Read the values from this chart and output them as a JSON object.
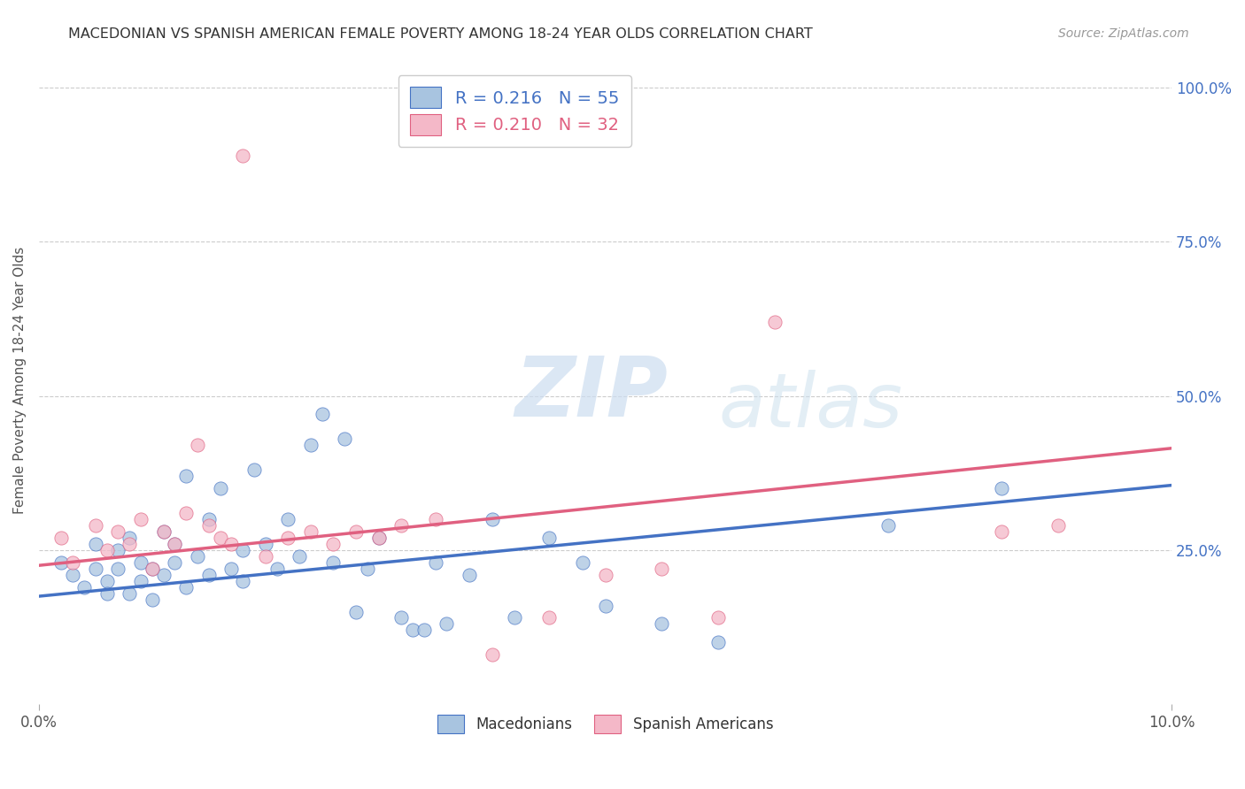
{
  "title": "MACEDONIAN VS SPANISH AMERICAN FEMALE POVERTY AMONG 18-24 YEAR OLDS CORRELATION CHART",
  "source": "Source: ZipAtlas.com",
  "ylabel": "Female Poverty Among 18-24 Year Olds",
  "ylabel_right_ticks": [
    "100.0%",
    "75.0%",
    "50.0%",
    "25.0%"
  ],
  "ylabel_right_vals": [
    1.0,
    0.75,
    0.5,
    0.25
  ],
  "xlim": [
    0.0,
    0.1
  ],
  "ylim": [
    0.0,
    1.05
  ],
  "macedonian_R": "0.216",
  "macedonian_N": "55",
  "spanish_R": "0.210",
  "spanish_N": "32",
  "macedonian_color": "#a8c4e0",
  "macedonian_line_color": "#4472c4",
  "spanish_color": "#f4b8c8",
  "spanish_line_color": "#e06080",
  "macedonian_scatter_x": [
    0.002,
    0.003,
    0.004,
    0.005,
    0.005,
    0.006,
    0.006,
    0.007,
    0.007,
    0.008,
    0.008,
    0.009,
    0.009,
    0.01,
    0.01,
    0.011,
    0.011,
    0.012,
    0.012,
    0.013,
    0.013,
    0.014,
    0.015,
    0.015,
    0.016,
    0.017,
    0.018,
    0.018,
    0.019,
    0.02,
    0.021,
    0.022,
    0.023,
    0.024,
    0.025,
    0.026,
    0.027,
    0.028,
    0.029,
    0.03,
    0.032,
    0.033,
    0.034,
    0.035,
    0.036,
    0.038,
    0.04,
    0.042,
    0.045,
    0.048,
    0.05,
    0.055,
    0.06,
    0.075,
    0.085
  ],
  "macedonian_scatter_y": [
    0.23,
    0.21,
    0.19,
    0.26,
    0.22,
    0.2,
    0.18,
    0.25,
    0.22,
    0.18,
    0.27,
    0.2,
    0.23,
    0.22,
    0.17,
    0.28,
    0.21,
    0.23,
    0.26,
    0.19,
    0.37,
    0.24,
    0.3,
    0.21,
    0.35,
    0.22,
    0.25,
    0.2,
    0.38,
    0.26,
    0.22,
    0.3,
    0.24,
    0.42,
    0.47,
    0.23,
    0.43,
    0.15,
    0.22,
    0.27,
    0.14,
    0.12,
    0.12,
    0.23,
    0.13,
    0.21,
    0.3,
    0.14,
    0.27,
    0.23,
    0.16,
    0.13,
    0.1,
    0.29,
    0.35
  ],
  "spanish_scatter_x": [
    0.002,
    0.003,
    0.005,
    0.006,
    0.007,
    0.008,
    0.009,
    0.01,
    0.011,
    0.012,
    0.013,
    0.014,
    0.015,
    0.016,
    0.017,
    0.018,
    0.02,
    0.022,
    0.024,
    0.026,
    0.028,
    0.03,
    0.032,
    0.035,
    0.04,
    0.045,
    0.05,
    0.055,
    0.06,
    0.065,
    0.085,
    0.09
  ],
  "spanish_scatter_y": [
    0.27,
    0.23,
    0.29,
    0.25,
    0.28,
    0.26,
    0.3,
    0.22,
    0.28,
    0.26,
    0.31,
    0.42,
    0.29,
    0.27,
    0.26,
    0.89,
    0.24,
    0.27,
    0.28,
    0.26,
    0.28,
    0.27,
    0.29,
    0.3,
    0.08,
    0.14,
    0.21,
    0.22,
    0.14,
    0.62,
    0.28,
    0.29
  ],
  "trend_mac_x0": 0.0,
  "trend_mac_y0": 0.175,
  "trend_mac_x1": 0.1,
  "trend_mac_y1": 0.355,
  "trend_spa_x0": 0.0,
  "trend_spa_y0": 0.225,
  "trend_spa_x1": 0.1,
  "trend_spa_y1": 0.415,
  "watermark_zip": "ZIP",
  "watermark_atlas": "atlas",
  "background_color": "#ffffff",
  "grid_color": "#cccccc"
}
